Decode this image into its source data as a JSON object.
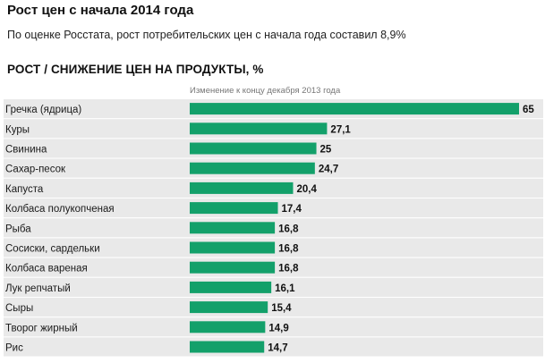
{
  "header": {
    "title": "Рост цен с начала 2014 года",
    "subtitle": "По оценке Росстата, рост потребительских цен с начала года составил 8,9%"
  },
  "chart_data": {
    "type": "bar",
    "orientation": "horizontal",
    "title": "РОСТ / СНИЖЕНИЕ ЦЕН НА ПРОДУКТЫ, %",
    "xlabel": "Изменение к концу декабря 2013 года",
    "ylabel": "",
    "grid": false,
    "categories": [
      "Гречка (ядрица)",
      "Куры",
      "Свинина",
      "Сахар-песок",
      "Капуста",
      "Колбаса полукопченая",
      "Рыба",
      "Сосиски, сардельки",
      "Колбаса вареная",
      "Лук репчатый",
      "Сыры",
      "Творог жирный",
      "Рис"
    ],
    "values": [
      65,
      27.1,
      25,
      24.7,
      20.4,
      17.4,
      16.8,
      16.8,
      16.8,
      16.1,
      15.4,
      14.9,
      14.7
    ],
    "value_labels": [
      "65",
      "27,1",
      "25",
      "24,7",
      "20,4",
      "17,4",
      "16,8",
      "16,8",
      "16,8",
      "16,1",
      "15,4",
      "14,9",
      "14,7"
    ],
    "xlim": [
      0,
      65
    ],
    "colors": {
      "bar": "#13a06a",
      "row_stripe": "#e9e9e9",
      "row_separator": "#d6d6d6"
    }
  }
}
